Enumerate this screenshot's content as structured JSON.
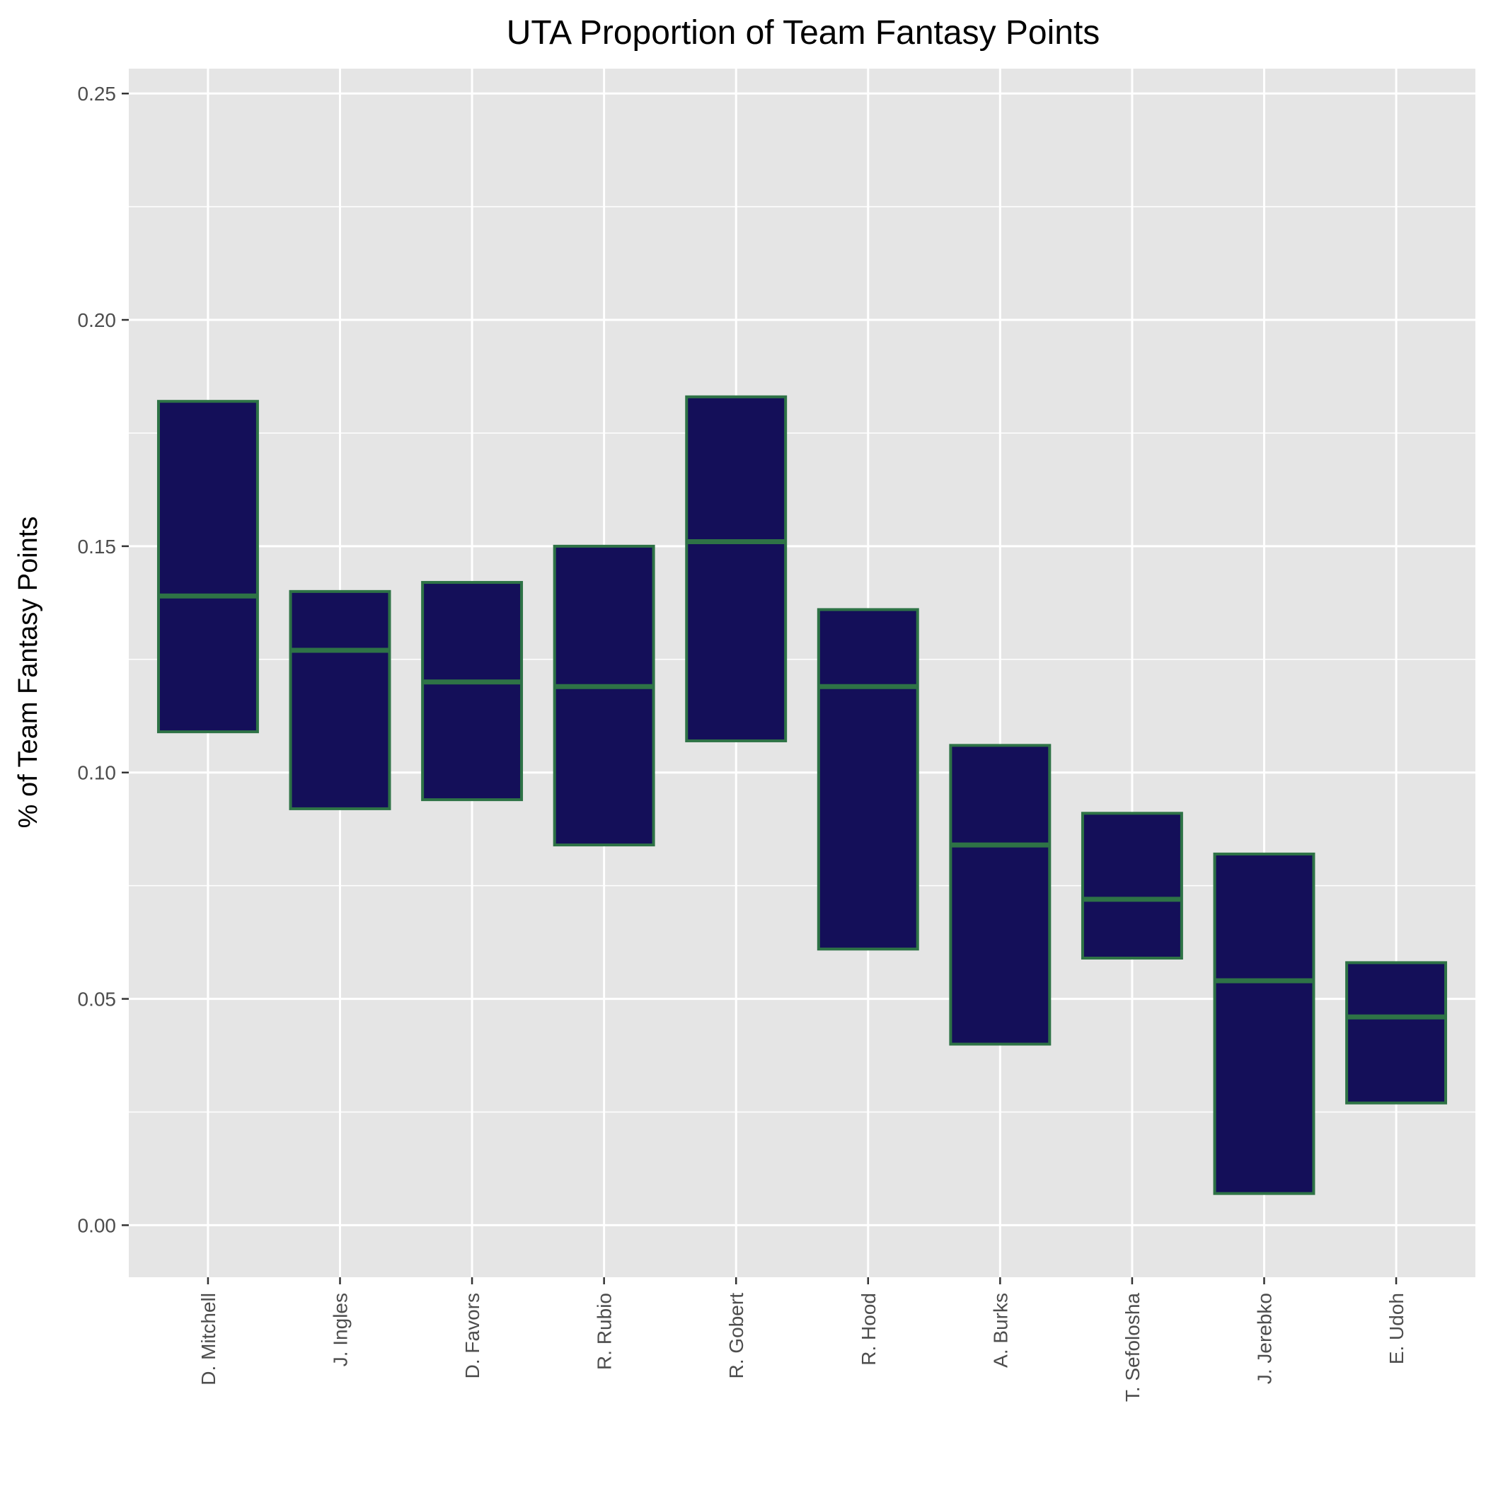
{
  "chart_data": {
    "type": "boxplot",
    "title": "UTA Proportion of Team Fantasy Points",
    "xlabel": "",
    "ylabel": "% of Team Fantasy Points",
    "ylim": [
      -0.0115,
      0.2555
    ],
    "yticks": [
      0.0,
      0.05,
      0.1,
      0.15,
      0.2,
      0.25
    ],
    "ytick_labels": [
      "0.00",
      "0.05",
      "0.10",
      "0.15",
      "0.20",
      "0.25"
    ],
    "grid": true,
    "categories": [
      "D. Mitchell",
      "J. Ingles",
      "D. Favors",
      "R. Rubio",
      "R. Gobert",
      "R. Hood",
      "A. Burks",
      "T. Sefolosha",
      "J. Jerebko",
      "E. Udoh"
    ],
    "series": [
      {
        "q1": [
          0.109,
          0.092,
          0.094,
          0.084,
          0.107,
          0.061,
          0.04,
          0.059,
          0.007,
          0.027
        ],
        "median": [
          0.139,
          0.127,
          0.12,
          0.119,
          0.151,
          0.119,
          0.084,
          0.072,
          0.054,
          0.046
        ],
        "q3": [
          0.182,
          0.14,
          0.142,
          0.15,
          0.183,
          0.136,
          0.106,
          0.091,
          0.082,
          0.058
        ]
      }
    ],
    "colors": {
      "box_fill": "#140f59",
      "box_border": "#2e7346",
      "panel_bg": "#e5e5e5",
      "grid": "#ffffff",
      "tick_text": "#4d4d4d"
    }
  }
}
